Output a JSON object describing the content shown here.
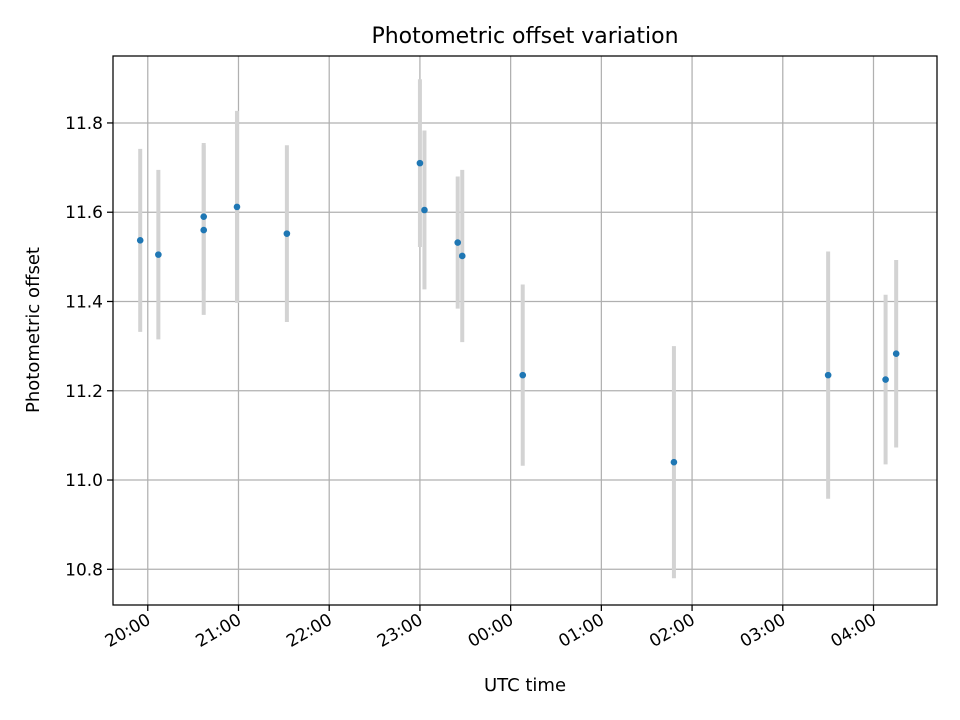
{
  "chart_data": {
    "type": "scatter",
    "title": "Photometric offset variation",
    "xlabel": "UTC time",
    "ylabel": "Photometric offset",
    "x_tick_labels": [
      "20:00",
      "21:00",
      "22:00",
      "23:00",
      "00:00",
      "01:00",
      "02:00",
      "03:00",
      "04:00"
    ],
    "y_ticks": [
      10.8,
      11.0,
      11.2,
      11.4,
      11.6,
      11.8
    ],
    "y_tick_labels": [
      "10.8",
      "11.0",
      "11.2",
      "11.4",
      "11.6",
      "11.8"
    ],
    "ylim": [
      10.72,
      11.95
    ],
    "xlim": [
      "19:37",
      "04:42"
    ],
    "grid": true,
    "point_color": "#1f77b4",
    "errorbar_color": "#d3d3d3",
    "series": [
      {
        "points": [
          {
            "x": "19:55",
            "y": 11.537,
            "err": 0.205
          },
          {
            "x": "20:07",
            "y": 11.505,
            "err": 0.19
          },
          {
            "x": "20:37",
            "y": 11.59,
            "err": 0.165
          },
          {
            "x": "20:37",
            "y": 11.56,
            "err": 0.19
          },
          {
            "x": "20:59",
            "y": 11.612,
            "err": 0.215
          },
          {
            "x": "21:32",
            "y": 11.552,
            "err": 0.198
          },
          {
            "x": "23:00",
            "y": 11.71,
            "err": 0.188
          },
          {
            "x": "23:03",
            "y": 11.605,
            "err": 0.178
          },
          {
            "x": "23:25",
            "y": 11.532,
            "err": 0.148
          },
          {
            "x": "23:28",
            "y": 11.502,
            "err": 0.193
          },
          {
            "x": "00:08",
            "y": 11.235,
            "err": 0.203
          },
          {
            "x": "01:48",
            "y": 11.04,
            "err": 0.26
          },
          {
            "x": "03:30",
            "y": 11.235,
            "err": 0.277
          },
          {
            "x": "04:08",
            "y": 11.225,
            "err": 0.19
          },
          {
            "x": "04:15",
            "y": 11.283,
            "err": 0.21
          }
        ]
      }
    ]
  }
}
